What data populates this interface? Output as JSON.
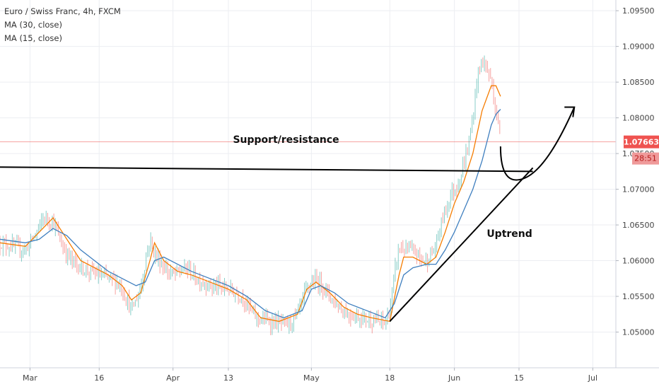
{
  "legend": {
    "symbol_line": "Euro / Swiss Franc, 4h, FXCM",
    "ma1": "MA (30, close)",
    "ma2": "MA (15, close)"
  },
  "price_label": {
    "value": "1.07663",
    "timer": "28:51",
    "color": "#ef5350"
  },
  "chart_data": {
    "type": "line",
    "title": "Euro / Swiss Franc, 4h, FXCM",
    "y_ticks": [
      "1.05000",
      "1.05500",
      "1.06000",
      "1.06500",
      "1.07000",
      "1.07500",
      "1.08000",
      "1.08500",
      "1.09000",
      "1.09500"
    ],
    "y_range": [
      1.045,
      1.0965
    ],
    "x_ticks": [
      {
        "label": "Mar",
        "day": 1
      },
      {
        "label": "16",
        "day": 16
      },
      {
        "label": "Apr",
        "day": 32
      },
      {
        "label": "13",
        "day": 44
      },
      {
        "label": "May",
        "day": 62
      },
      {
        "label": "18",
        "day": 79
      },
      {
        "label": "Jun",
        "day": 93
      },
      {
        "label": "15",
        "day": 107
      },
      {
        "label": "Jul",
        "day": 123
      }
    ],
    "x_range": [
      -5.5,
      128
    ],
    "grid": true,
    "current_price": 1.07663,
    "close_path": [
      [
        -5.5,
        1.0625
      ],
      [
        -3,
        1.062
      ],
      [
        0,
        1.0615
      ],
      [
        2,
        1.0635
      ],
      [
        4,
        1.066
      ],
      [
        6,
        1.0655
      ],
      [
        8,
        1.062
      ],
      [
        10,
        1.06
      ],
      [
        12,
        1.059
      ],
      [
        14,
        1.0585
      ],
      [
        16,
        1.058
      ],
      [
        18,
        1.0575
      ],
      [
        20,
        1.057
      ],
      [
        21,
        1.056
      ],
      [
        23,
        1.053
      ],
      [
        25,
        1.056
      ],
      [
        26,
        1.06
      ],
      [
        27,
        1.063
      ],
      [
        28,
        1.061
      ],
      [
        30,
        1.059
      ],
      [
        32,
        1.058
      ],
      [
        35,
        1.059
      ],
      [
        37,
        1.0575
      ],
      [
        40,
        1.0565
      ],
      [
        44,
        1.056
      ],
      [
        47,
        1.055
      ],
      [
        50,
        1.052
      ],
      [
        53,
        1.0515
      ],
      [
        57,
        1.051
      ],
      [
        59,
        1.0525
      ],
      [
        61,
        1.056
      ],
      [
        62,
        1.057
      ],
      [
        64,
        1.057
      ],
      [
        66,
        1.055
      ],
      [
        68,
        1.0535
      ],
      [
        70,
        1.0525
      ],
      [
        73,
        1.052
      ],
      [
        76,
        1.0515
      ],
      [
        78,
        1.0513
      ],
      [
        79,
        1.053
      ],
      [
        80,
        1.058
      ],
      [
        81,
        1.062
      ],
      [
        82,
        1.0615
      ],
      [
        83,
        1.0615
      ],
      [
        85,
        1.061
      ],
      [
        86,
        1.06
      ],
      [
        87,
        1.06
      ],
      [
        88,
        1.061
      ],
      [
        89,
        1.062
      ],
      [
        90,
        1.065
      ],
      [
        91,
        1.067
      ],
      [
        92,
        1.069
      ],
      [
        93,
        1.07
      ],
      [
        94,
        1.071
      ],
      [
        96,
        1.076
      ],
      [
        97,
        1.08
      ],
      [
        98,
        1.086
      ],
      [
        99,
        1.088
      ],
      [
        100,
        1.087
      ],
      [
        101,
        1.085
      ],
      [
        102,
        1.081
      ],
      [
        103,
        1.077
      ]
    ],
    "series": [
      {
        "name": "MA (15, close)",
        "color": "#f57c00",
        "points": [
          [
            -5.5,
            1.0625
          ],
          [
            0,
            1.062
          ],
          [
            3,
            1.064
          ],
          [
            6,
            1.066
          ],
          [
            9,
            1.063
          ],
          [
            12,
            1.06
          ],
          [
            15,
            1.059
          ],
          [
            18,
            1.058
          ],
          [
            21,
            1.0565
          ],
          [
            23,
            1.0545
          ],
          [
            25,
            1.0555
          ],
          [
            27,
            1.06
          ],
          [
            28,
            1.0625
          ],
          [
            30,
            1.06
          ],
          [
            33,
            1.0585
          ],
          [
            36,
            1.058
          ],
          [
            40,
            1.057
          ],
          [
            44,
            1.056
          ],
          [
            48,
            1.0545
          ],
          [
            51,
            1.052
          ],
          [
            55,
            1.0515
          ],
          [
            59,
            1.0525
          ],
          [
            61,
            1.056
          ],
          [
            63,
            1.057
          ],
          [
            66,
            1.0555
          ],
          [
            69,
            1.0535
          ],
          [
            72,
            1.0525
          ],
          [
            75,
            1.052
          ],
          [
            79,
            1.0515
          ],
          [
            81,
            1.058
          ],
          [
            82,
            1.0605
          ],
          [
            84,
            1.0605
          ],
          [
            87,
            1.0595
          ],
          [
            89,
            1.0605
          ],
          [
            91,
            1.064
          ],
          [
            93,
            1.068
          ],
          [
            95,
            1.071
          ],
          [
            97,
            1.075
          ],
          [
            99,
            1.081
          ],
          [
            101,
            1.0845
          ],
          [
            102,
            1.0845
          ],
          [
            103,
            1.083
          ]
        ]
      },
      {
        "name": "MA (30, close)",
        "color": "#3f7fbf",
        "points": [
          [
            -5.5,
            1.063
          ],
          [
            0,
            1.0625
          ],
          [
            3,
            1.063
          ],
          [
            6,
            1.0645
          ],
          [
            9,
            1.0635
          ],
          [
            12,
            1.0615
          ],
          [
            15,
            1.06
          ],
          [
            18,
            1.0585
          ],
          [
            21,
            1.0575
          ],
          [
            24,
            1.0565
          ],
          [
            26,
            1.057
          ],
          [
            28,
            1.06
          ],
          [
            30,
            1.0605
          ],
          [
            33,
            1.0595
          ],
          [
            36,
            1.0585
          ],
          [
            40,
            1.0575
          ],
          [
            44,
            1.0565
          ],
          [
            48,
            1.055
          ],
          [
            52,
            1.053
          ],
          [
            56,
            1.052
          ],
          [
            60,
            1.053
          ],
          [
            62,
            1.056
          ],
          [
            64,
            1.0565
          ],
          [
            67,
            1.0555
          ],
          [
            70,
            1.054
          ],
          [
            74,
            1.053
          ],
          [
            78,
            1.052
          ],
          [
            80,
            1.054
          ],
          [
            82,
            1.058
          ],
          [
            84,
            1.059
          ],
          [
            87,
            1.0595
          ],
          [
            89,
            1.0595
          ],
          [
            91,
            1.0615
          ],
          [
            93,
            1.064
          ],
          [
            95,
            1.067
          ],
          [
            97,
            1.07
          ],
          [
            99,
            1.074
          ],
          [
            101,
            1.079
          ],
          [
            102,
            1.0805
          ],
          [
            103,
            1.0812
          ]
        ]
      }
    ],
    "annotations": [
      {
        "text": "Support/resistance",
        "x": 45,
        "y": 1.0765
      },
      {
        "text": "Uptrend",
        "x": 100,
        "y": 1.0633
      }
    ],
    "support_line": {
      "from": [
        -5.5,
        1.0731
      ],
      "to": [
        110,
        1.0725
      ]
    },
    "trend_line": {
      "from": [
        79,
        1.0515
      ],
      "to": [
        110,
        1.073
      ]
    },
    "arrow_curve": {
      "from": [
        103,
        1.076
      ],
      "via": [
        108,
        1.0715
      ],
      "to": [
        119,
        1.0815
      ]
    }
  }
}
